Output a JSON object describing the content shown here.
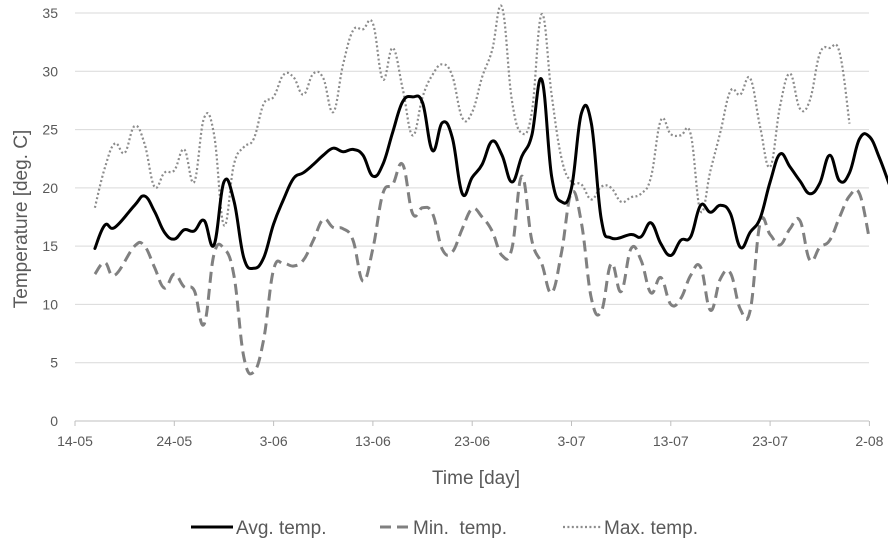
{
  "chart_data": {
    "type": "line",
    "title": "",
    "xlabel": "Time [day]",
    "ylabel": "Temperature [deg. C]",
    "x_unit": "date",
    "x_ticks": [
      "14-05",
      "24-05",
      "3-06",
      "13-06",
      "23-06",
      "3-07",
      "13-07",
      "23-07",
      "2-08"
    ],
    "ylim": [
      0,
      35
    ],
    "y_ticks": [
      0,
      5,
      10,
      15,
      20,
      25,
      30,
      35
    ],
    "grid": "horizontal",
    "legend_position": "bottom",
    "series": [
      {
        "name": "Avg. temp.",
        "style": "solid",
        "color": "#000000",
        "points": [
          [
            "16-05",
            14.8
          ],
          [
            "17-05",
            16.8
          ],
          [
            "18-05",
            16.6
          ],
          [
            "20-05",
            18.5
          ],
          [
            "21-05",
            19.3
          ],
          [
            "22-05",
            18.0
          ],
          [
            "23-05",
            16.2
          ],
          [
            "24-05",
            15.6
          ],
          [
            "25-05",
            16.4
          ],
          [
            "26-05",
            16.3
          ],
          [
            "27-05",
            17.2
          ],
          [
            "28-05",
            15.1
          ],
          [
            "29-05",
            20.5
          ],
          [
            "30-05",
            18.9
          ],
          [
            "31-05",
            14.0
          ],
          [
            "1-06",
            13.1
          ],
          [
            "2-06",
            14.0
          ],
          [
            "3-06",
            16.9
          ],
          [
            "4-06",
            19.0
          ],
          [
            "5-06",
            20.8
          ],
          [
            "6-06",
            21.3
          ],
          [
            "7-06",
            22.0
          ],
          [
            "8-06",
            22.8
          ],
          [
            "9-06",
            23.4
          ],
          [
            "10-06",
            23.1
          ],
          [
            "11-06",
            23.3
          ],
          [
            "12-06",
            22.8
          ],
          [
            "13-06",
            21.0
          ],
          [
            "14-06",
            22.0
          ],
          [
            "15-06",
            24.8
          ],
          [
            "16-06",
            27.4
          ],
          [
            "17-06",
            27.8
          ],
          [
            "18-06",
            27.3
          ],
          [
            "19-06",
            23.2
          ],
          [
            "20-06",
            25.6
          ],
          [
            "21-06",
            24.3
          ],
          [
            "22-06",
            19.5
          ],
          [
            "23-06",
            20.9
          ],
          [
            "24-06",
            22.0
          ],
          [
            "25-06",
            24.0
          ],
          [
            "26-06",
            22.8
          ],
          [
            "27-06",
            20.5
          ],
          [
            "28-06",
            22.7
          ],
          [
            "29-06",
            24.5
          ],
          [
            "30-06",
            29.3
          ],
          [
            "1-07",
            21.0
          ],
          [
            "2-07",
            18.8
          ],
          [
            "3-07",
            20.0
          ],
          [
            "4-07",
            26.4
          ],
          [
            "5-07",
            25.5
          ],
          [
            "6-07",
            17.3
          ],
          [
            "7-07",
            15.7
          ],
          [
            "9-07",
            16.0
          ],
          [
            "10-07",
            15.8
          ],
          [
            "11-07",
            17.0
          ],
          [
            "12-07",
            15.2
          ],
          [
            "13-07",
            14.2
          ],
          [
            "14-07",
            15.5
          ],
          [
            "15-07",
            15.8
          ],
          [
            "16-07",
            18.5
          ],
          [
            "17-07",
            17.9
          ],
          [
            "18-07",
            18.5
          ],
          [
            "19-07",
            17.8
          ],
          [
            "20-07",
            14.9
          ],
          [
            "21-07",
            16.2
          ],
          [
            "22-07",
            17.4
          ],
          [
            "23-07",
            20.5
          ],
          [
            "24-07",
            22.9
          ],
          [
            "25-07",
            21.8
          ],
          [
            "26-07",
            20.6
          ],
          [
            "27-07",
            19.5
          ],
          [
            "28-07",
            20.4
          ],
          [
            "29-07",
            22.8
          ],
          [
            "30-07",
            20.6
          ],
          [
            "31-07",
            21.3
          ],
          [
            "1-08",
            24.2
          ],
          [
            "2-08",
            24.4
          ],
          [
            "3-08",
            22.6
          ],
          [
            "4-08",
            20.3
          ]
        ]
      },
      {
        "name": "Min.  temp.",
        "style": "dashed",
        "color": "#808080",
        "points": [
          [
            "16-05",
            12.6
          ],
          [
            "17-05",
            13.6
          ],
          [
            "18-05",
            12.5
          ],
          [
            "20-05",
            15.0
          ],
          [
            "21-05",
            15.0
          ],
          [
            "22-05",
            13.2
          ],
          [
            "23-05",
            11.4
          ],
          [
            "24-05",
            12.6
          ],
          [
            "25-05",
            11.5
          ],
          [
            "26-05",
            11.2
          ],
          [
            "27-05",
            8.3
          ],
          [
            "28-05",
            14.3
          ],
          [
            "29-05",
            14.8
          ],
          [
            "30-05",
            12.5
          ],
          [
            "31-05",
            5.5
          ],
          [
            "1-06",
            4.2
          ],
          [
            "2-06",
            7.0
          ],
          [
            "3-06",
            13.0
          ],
          [
            "4-06",
            13.5
          ],
          [
            "5-06",
            13.3
          ],
          [
            "6-06",
            13.8
          ],
          [
            "7-06",
            15.5
          ],
          [
            "8-06",
            17.3
          ],
          [
            "9-06",
            16.6
          ],
          [
            "10-06",
            16.5
          ],
          [
            "11-06",
            15.5
          ],
          [
            "12-06",
            12.0
          ],
          [
            "13-06",
            14.8
          ],
          [
            "14-06",
            19.5
          ],
          [
            "15-06",
            20.3
          ],
          [
            "16-06",
            22.0
          ],
          [
            "17-06",
            17.8
          ],
          [
            "18-06",
            18.3
          ],
          [
            "19-06",
            17.8
          ],
          [
            "20-06",
            14.7
          ],
          [
            "21-06",
            14.5
          ],
          [
            "22-06",
            16.5
          ],
          [
            "23-06",
            18.2
          ],
          [
            "24-06",
            17.5
          ],
          [
            "25-06",
            16.3
          ],
          [
            "26-06",
            14.2
          ],
          [
            "27-06",
            14.8
          ],
          [
            "28-06",
            21.0
          ],
          [
            "29-06",
            15.5
          ],
          [
            "30-06",
            13.5
          ],
          [
            "1-07",
            11.0
          ],
          [
            "2-07",
            14.5
          ],
          [
            "3-07",
            19.6
          ],
          [
            "4-07",
            17.0
          ],
          [
            "5-07",
            10.5
          ],
          [
            "6-07",
            9.4
          ],
          [
            "7-07",
            13.5
          ],
          [
            "8-07",
            11.1
          ],
          [
            "9-07",
            14.8
          ],
          [
            "10-07",
            13.8
          ],
          [
            "11-07",
            11.0
          ],
          [
            "12-07",
            12.3
          ],
          [
            "13-07",
            10.0
          ],
          [
            "14-07",
            10.5
          ],
          [
            "15-07",
            12.5
          ],
          [
            "16-07",
            13.2
          ],
          [
            "17-07",
            9.5
          ],
          [
            "18-07",
            12.2
          ],
          [
            "19-07",
            12.7
          ],
          [
            "20-07",
            9.6
          ],
          [
            "21-07",
            9.5
          ],
          [
            "22-07",
            17.0
          ],
          [
            "23-07",
            16.0
          ],
          [
            "24-07",
            15.1
          ],
          [
            "25-07",
            16.5
          ],
          [
            "26-07",
            17.2
          ],
          [
            "27-07",
            13.8
          ],
          [
            "28-07",
            14.9
          ],
          [
            "29-07",
            15.5
          ],
          [
            "30-07",
            17.5
          ],
          [
            "31-07",
            19.3
          ],
          [
            "1-08",
            19.5
          ],
          [
            "2-08",
            15.6
          ]
        ]
      },
      {
        "name": "Max. temp.",
        "style": "dotted",
        "color": "#8c8c8c",
        "points": [
          [
            "16-05",
            18.3
          ],
          [
            "17-05",
            21.7
          ],
          [
            "18-05",
            23.8
          ],
          [
            "19-05",
            23.0
          ],
          [
            "20-05",
            25.3
          ],
          [
            "21-05",
            23.8
          ],
          [
            "22-05",
            20.1
          ],
          [
            "23-05",
            21.3
          ],
          [
            "24-05",
            21.5
          ],
          [
            "25-05",
            23.3
          ],
          [
            "26-05",
            20.5
          ],
          [
            "27-05",
            26.0
          ],
          [
            "28-05",
            24.6
          ],
          [
            "29-05",
            16.8
          ],
          [
            "30-05",
            22.0
          ],
          [
            "31-05",
            23.5
          ],
          [
            "1-06",
            24.2
          ],
          [
            "2-06",
            27.2
          ],
          [
            "3-06",
            27.8
          ],
          [
            "4-06",
            29.7
          ],
          [
            "5-06",
            29.5
          ],
          [
            "6-06",
            28.0
          ],
          [
            "7-06",
            29.8
          ],
          [
            "8-06",
            29.4
          ],
          [
            "9-06",
            26.5
          ],
          [
            "10-06",
            30.6
          ],
          [
            "11-06",
            33.5
          ],
          [
            "12-06",
            33.6
          ],
          [
            "13-06",
            34.1
          ],
          [
            "14-06",
            29.3
          ],
          [
            "15-06",
            32.0
          ],
          [
            "16-06",
            28.5
          ],
          [
            "17-06",
            24.5
          ],
          [
            "18-06",
            27.8
          ],
          [
            "19-06",
            29.7
          ],
          [
            "20-06",
            30.6
          ],
          [
            "21-06",
            29.6
          ],
          [
            "22-06",
            26.0
          ],
          [
            "23-06",
            26.5
          ],
          [
            "24-06",
            29.5
          ],
          [
            "25-06",
            31.8
          ],
          [
            "26-06",
            35.5
          ],
          [
            "27-06",
            27.5
          ],
          [
            "28-06",
            24.7
          ],
          [
            "29-06",
            26.5
          ],
          [
            "30-06",
            34.9
          ],
          [
            "1-07",
            28.0
          ],
          [
            "2-07",
            22.5
          ],
          [
            "3-07",
            20.5
          ],
          [
            "4-07",
            20.3
          ],
          [
            "5-07",
            19.0
          ],
          [
            "6-07",
            20.1
          ],
          [
            "7-07",
            20.0
          ],
          [
            "8-07",
            18.8
          ],
          [
            "9-07",
            19.2
          ],
          [
            "10-07",
            19.5
          ],
          [
            "11-07",
            20.9
          ],
          [
            "12-07",
            25.8
          ],
          [
            "13-07",
            24.6
          ],
          [
            "14-07",
            24.5
          ],
          [
            "15-07",
            24.6
          ],
          [
            "16-07",
            18.0
          ],
          [
            "17-07",
            21.5
          ],
          [
            "18-07",
            24.8
          ],
          [
            "19-07",
            28.3
          ],
          [
            "20-07",
            28.0
          ],
          [
            "21-07",
            29.4
          ],
          [
            "22-07",
            25.2
          ],
          [
            "23-07",
            21.8
          ],
          [
            "24-07",
            27.0
          ],
          [
            "25-07",
            29.8
          ],
          [
            "26-07",
            26.8
          ],
          [
            "27-07",
            27.5
          ],
          [
            "28-07",
            31.5
          ],
          [
            "29-07",
            32.0
          ],
          [
            "30-07",
            31.6
          ],
          [
            "31-07",
            25.5
          ]
        ]
      }
    ]
  }
}
